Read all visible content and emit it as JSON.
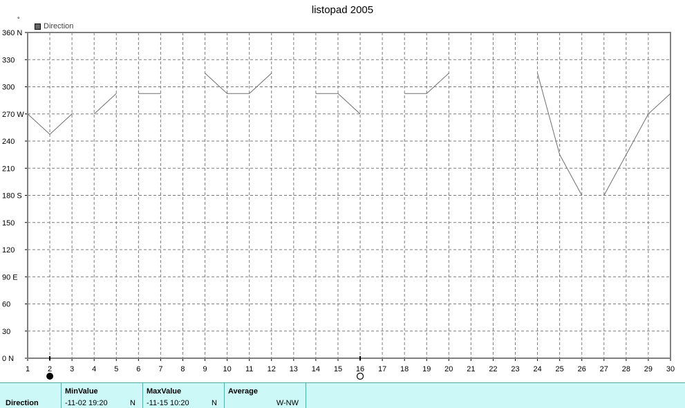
{
  "chart_data": {
    "type": "line",
    "title": "listopad 2005",
    "unit_mark": "°",
    "series": [
      {
        "name": "Direction",
        "segments": [
          [
            [
              1,
              270
            ],
            [
              2,
              247.5
            ],
            [
              3,
              270
            ]
          ],
          [
            [
              4,
              270
            ],
            [
              5,
              292.5
            ]
          ],
          [
            [
              6,
              292.5
            ],
            [
              7,
              292.5
            ]
          ],
          [
            [
              9,
              315
            ],
            [
              10,
              292.5
            ],
            [
              11,
              292.5
            ],
            [
              12,
              315
            ]
          ],
          [
            [
              14,
              292.5
            ],
            [
              15,
              292.5
            ],
            [
              16,
              270
            ]
          ],
          [
            [
              18,
              292.5
            ],
            [
              19,
              292.5
            ],
            [
              20,
              315
            ]
          ],
          [
            [
              24,
              315
            ],
            [
              25,
              225
            ],
            [
              26,
              180
            ]
          ],
          [
            [
              27,
              180
            ],
            [
              28,
              225
            ],
            [
              29,
              270
            ],
            [
              30,
              292.5
            ]
          ]
        ]
      }
    ],
    "xlim": [
      1,
      30
    ],
    "ylim": [
      0,
      360
    ],
    "x_ticks": [
      "1",
      "2",
      "3",
      "4",
      "5",
      "6",
      "7",
      "8",
      "9",
      "10",
      "11",
      "12",
      "13",
      "14",
      "15",
      "16",
      "17",
      "18",
      "19",
      "20",
      "21",
      "22",
      "23",
      "24",
      "25",
      "26",
      "27",
      "28",
      "29",
      "30"
    ],
    "y_ticks": [
      {
        "value": 360,
        "label": "360 N"
      },
      {
        "value": 330,
        "label": "330"
      },
      {
        "value": 300,
        "label": "300"
      },
      {
        "value": 270,
        "label": "270 W"
      },
      {
        "value": 240,
        "label": "240"
      },
      {
        "value": 210,
        "label": "210"
      },
      {
        "value": 180,
        "label": "180 S"
      },
      {
        "value": 150,
        "label": "150"
      },
      {
        "value": 120,
        "label": "120"
      },
      {
        "value": 90,
        "label": "90  E"
      },
      {
        "value": 60,
        "label": "60"
      },
      {
        "value": 30,
        "label": "30"
      },
      {
        "value": 0,
        "label": "0   N"
      }
    ],
    "moon_phases": [
      {
        "day": 2,
        "phase": "new"
      },
      {
        "day": 16,
        "phase": "full"
      }
    ],
    "grid": true,
    "legend_position": "top-left",
    "colors": {
      "line": "#6e6e6e",
      "grid": "#7a7a7a",
      "frame": "#808080"
    }
  },
  "summary": {
    "row_label": "Direction",
    "min": {
      "header": "MinValue",
      "value": "-11-02  19:20",
      "suffix": "N"
    },
    "max": {
      "header": "MaxValue",
      "value": "-11-15  10:20",
      "suffix": "N"
    },
    "avg": {
      "header": "Average",
      "value": "W-NW"
    }
  }
}
